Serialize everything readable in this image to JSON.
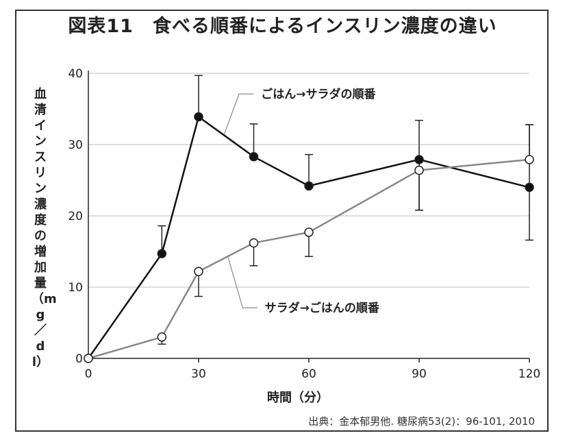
{
  "chart_data": {
    "type": "line",
    "title": "図表11　食べる順番によるインスリン濃度の違い",
    "xlabel": "時間（分）",
    "ylabel": "血清インスリン濃度の増加量（mg／dl）",
    "source": "出典：金本郁男他. 糖尿病53(2)：96-101, 2010",
    "xlim": [
      0,
      120
    ],
    "ylim": [
      0,
      40
    ],
    "xticks": [
      0,
      30,
      60,
      90,
      120
    ],
    "yticks": [
      0,
      10,
      20,
      30,
      40
    ],
    "grid": true,
    "series": [
      {
        "name": "ごはん→サラダの順番",
        "marker": "filled-circle",
        "color": "#111111",
        "x": [
          0,
          20,
          30,
          45,
          60,
          90,
          120
        ],
        "y": [
          0,
          14.7,
          33.9,
          28.3,
          24.2,
          27.9,
          24.0
        ],
        "err_upper": [
          0,
          18.6,
          39.7,
          32.9,
          28.6,
          33.4,
          32.8
        ],
        "err_lower": [
          0,
          14.7,
          33.9,
          28.3,
          24.2,
          20.8,
          16.6
        ]
      },
      {
        "name": "サラダ→ごはんの順番",
        "marker": "open-circle",
        "color": "#888888",
        "x": [
          0,
          20,
          30,
          45,
          60,
          90,
          120
        ],
        "y": [
          0,
          3.0,
          12.2,
          16.2,
          17.7,
          26.4,
          27.9
        ],
        "err_upper": [
          0,
          3.0,
          12.2,
          16.2,
          17.7,
          26.4,
          32.8
        ],
        "err_lower": [
          0,
          2.0,
          8.7,
          13.0,
          14.3,
          20.8,
          27.9
        ]
      }
    ]
  }
}
